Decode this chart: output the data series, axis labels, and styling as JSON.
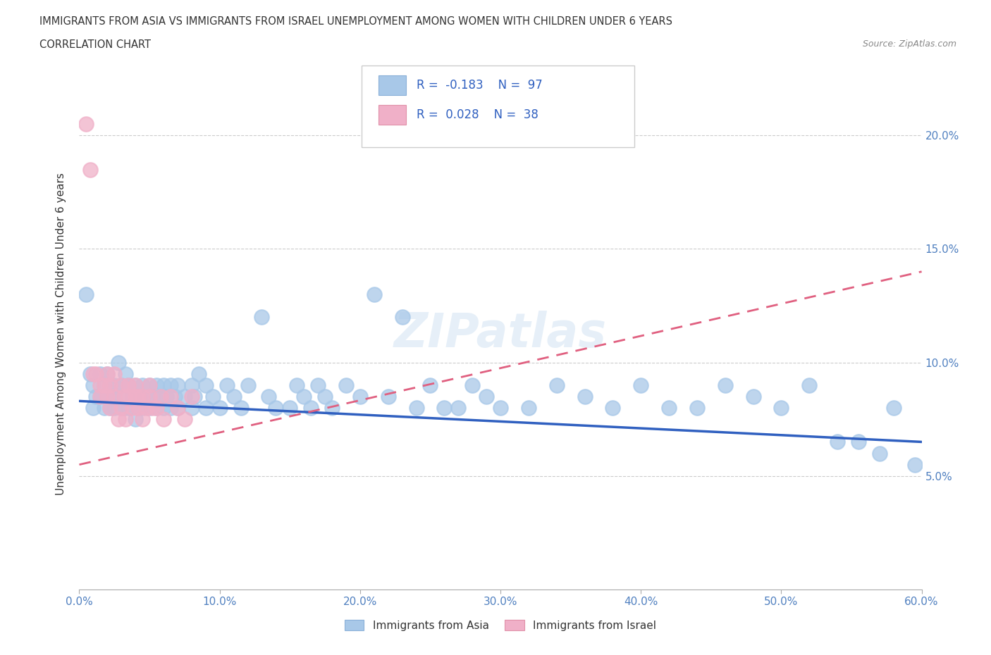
{
  "title_line1": "IMMIGRANTS FROM ASIA VS IMMIGRANTS FROM ISRAEL UNEMPLOYMENT AMONG WOMEN WITH CHILDREN UNDER 6 YEARS",
  "title_line2": "CORRELATION CHART",
  "source": "Source: ZipAtlas.com",
  "ylabel": "Unemployment Among Women with Children Under 6 years",
  "xlim": [
    0,
    0.6
  ],
  "ylim": [
    0,
    0.225
  ],
  "xtick_vals": [
    0.0,
    0.1,
    0.2,
    0.3,
    0.4,
    0.5,
    0.6
  ],
  "xtick_labels": [
    "0.0%",
    "10.0%",
    "20.0%",
    "30.0%",
    "40.0%",
    "50.0%",
    "60.0%"
  ],
  "ytick_labels_right": [
    "5.0%",
    "10.0%",
    "15.0%",
    "20.0%"
  ],
  "yticks_right": [
    0.05,
    0.1,
    0.15,
    0.2
  ],
  "legend_r1_val": "-0.183",
  "legend_n1_val": "97",
  "legend_r2_val": "0.028",
  "legend_n2_val": "38",
  "color_asia": "#a8c8e8",
  "color_israel": "#f0b0c8",
  "color_asia_line": "#3060c0",
  "color_israel_line": "#e06080",
  "watermark": "ZIPatlas",
  "background_color": "#ffffff",
  "asia_line_start_y": 0.083,
  "asia_line_end_y": 0.065,
  "israel_line_start_y": 0.055,
  "israel_line_end_y": 0.14,
  "asia_x": [
    0.005,
    0.008,
    0.01,
    0.01,
    0.012,
    0.015,
    0.015,
    0.018,
    0.018,
    0.02,
    0.02,
    0.022,
    0.022,
    0.025,
    0.025,
    0.025,
    0.028,
    0.03,
    0.03,
    0.03,
    0.032,
    0.033,
    0.035,
    0.035,
    0.038,
    0.04,
    0.04,
    0.042,
    0.042,
    0.045,
    0.045,
    0.048,
    0.05,
    0.05,
    0.052,
    0.055,
    0.055,
    0.058,
    0.06,
    0.06,
    0.062,
    0.065,
    0.065,
    0.068,
    0.07,
    0.07,
    0.075,
    0.08,
    0.08,
    0.082,
    0.085,
    0.09,
    0.09,
    0.095,
    0.1,
    0.105,
    0.11,
    0.115,
    0.12,
    0.13,
    0.135,
    0.14,
    0.15,
    0.155,
    0.16,
    0.165,
    0.17,
    0.175,
    0.18,
    0.19,
    0.2,
    0.21,
    0.22,
    0.23,
    0.24,
    0.25,
    0.26,
    0.27,
    0.28,
    0.29,
    0.3,
    0.32,
    0.34,
    0.36,
    0.38,
    0.4,
    0.42,
    0.44,
    0.46,
    0.48,
    0.5,
    0.52,
    0.54,
    0.555,
    0.57,
    0.58,
    0.595
  ],
  "asia_y": [
    0.13,
    0.095,
    0.08,
    0.09,
    0.085,
    0.085,
    0.095,
    0.08,
    0.09,
    0.085,
    0.095,
    0.08,
    0.09,
    0.08,
    0.085,
    0.09,
    0.1,
    0.08,
    0.085,
    0.09,
    0.08,
    0.095,
    0.08,
    0.09,
    0.085,
    0.075,
    0.09,
    0.08,
    0.085,
    0.08,
    0.09,
    0.085,
    0.08,
    0.09,
    0.085,
    0.08,
    0.09,
    0.085,
    0.08,
    0.09,
    0.085,
    0.08,
    0.09,
    0.085,
    0.08,
    0.09,
    0.085,
    0.08,
    0.09,
    0.085,
    0.095,
    0.08,
    0.09,
    0.085,
    0.08,
    0.09,
    0.085,
    0.08,
    0.09,
    0.12,
    0.085,
    0.08,
    0.08,
    0.09,
    0.085,
    0.08,
    0.09,
    0.085,
    0.08,
    0.09,
    0.085,
    0.13,
    0.085,
    0.12,
    0.08,
    0.09,
    0.08,
    0.08,
    0.09,
    0.085,
    0.08,
    0.08,
    0.09,
    0.085,
    0.08,
    0.09,
    0.08,
    0.08,
    0.09,
    0.085,
    0.08,
    0.09,
    0.065,
    0.065,
    0.06,
    0.08,
    0.055
  ],
  "israel_x": [
    0.005,
    0.008,
    0.01,
    0.012,
    0.015,
    0.015,
    0.018,
    0.02,
    0.02,
    0.022,
    0.022,
    0.025,
    0.025,
    0.028,
    0.03,
    0.03,
    0.032,
    0.033,
    0.035,
    0.035,
    0.038,
    0.04,
    0.04,
    0.042,
    0.042,
    0.045,
    0.045,
    0.048,
    0.05,
    0.05,
    0.052,
    0.055,
    0.058,
    0.06,
    0.065,
    0.07,
    0.075,
    0.08
  ],
  "israel_y": [
    0.205,
    0.185,
    0.095,
    0.095,
    0.09,
    0.085,
    0.09,
    0.095,
    0.085,
    0.09,
    0.08,
    0.085,
    0.095,
    0.075,
    0.09,
    0.08,
    0.085,
    0.075,
    0.085,
    0.09,
    0.08,
    0.085,
    0.09,
    0.08,
    0.085,
    0.075,
    0.085,
    0.08,
    0.085,
    0.09,
    0.08,
    0.08,
    0.085,
    0.075,
    0.085,
    0.08,
    0.075,
    0.085
  ]
}
